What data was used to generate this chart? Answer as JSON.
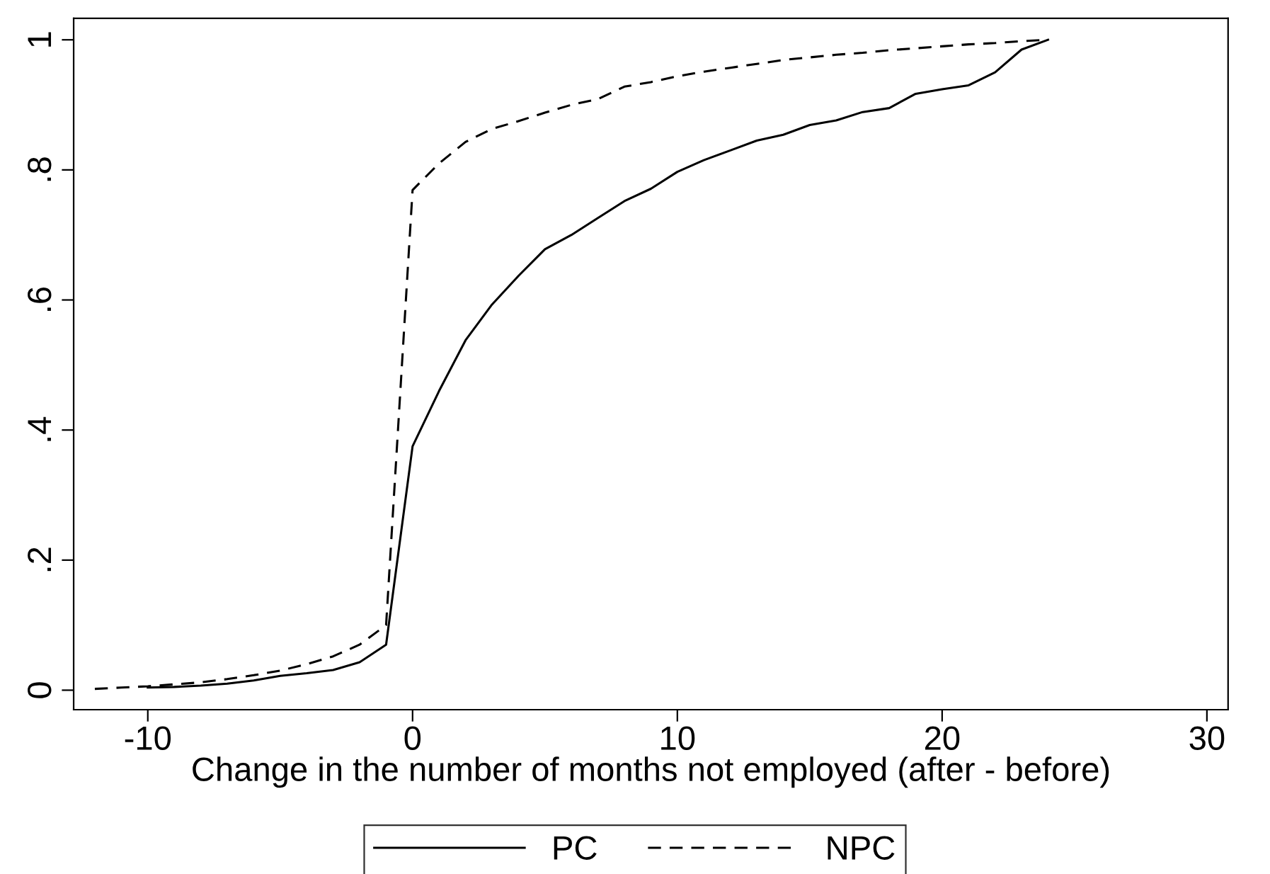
{
  "chart_data": {
    "type": "line",
    "xlabel": "Change in the number of months not employed (after - before)",
    "xlim": [
      -12.8,
      30.8
    ],
    "xticks": [
      -10,
      0,
      10,
      20,
      30
    ],
    "ylim": [
      -0.03,
      1.033
    ],
    "yticks": [
      {
        "value": 0,
        "label": "0"
      },
      {
        "value": 0.2,
        "label": ".2"
      },
      {
        "value": 0.4,
        "label": ".4"
      },
      {
        "value": 0.6,
        "label": ".6"
      },
      {
        "value": 0.8,
        "label": ".8"
      },
      {
        "value": 1,
        "label": "1"
      }
    ],
    "grid": false,
    "legend": "bottom",
    "marker": "none",
    "series": [
      {
        "name": "PC",
        "color": "#000000",
        "line_style": "solid",
        "x": [
          -10,
          -9,
          -8,
          -7,
          -6,
          -5,
          -4,
          -3,
          -2,
          -1,
          0,
          1,
          2,
          3,
          4,
          5,
          6,
          7,
          8,
          9,
          10,
          11,
          12,
          13,
          14,
          15,
          16,
          17,
          18,
          19,
          20,
          21,
          22,
          23,
          24
        ],
        "values": [
          0.004,
          0.005,
          0.007,
          0.01,
          0.015,
          0.022,
          0.026,
          0.031,
          0.043,
          0.07,
          0.375,
          0.46,
          0.538,
          0.593,
          0.637,
          0.678,
          0.7,
          0.726,
          0.752,
          0.771,
          0.797,
          0.815,
          0.83,
          0.845,
          0.854,
          0.869,
          0.876,
          0.889,
          0.895,
          0.917,
          0.924,
          0.93,
          0.95,
          0.985,
          1.0
        ]
      },
      {
        "name": "NPC",
        "color": "#000000",
        "line_style": "dashed",
        "x": [
          -12,
          -11,
          -10,
          -9,
          -8,
          -7,
          -6,
          -5,
          -4,
          -3,
          -2,
          -1,
          0,
          1,
          2,
          3,
          4,
          5,
          6,
          7,
          8,
          9,
          10,
          11,
          12,
          13,
          14,
          15,
          16,
          17,
          18,
          19,
          20,
          21,
          22,
          23,
          24
        ],
        "values": [
          0.002,
          0.004,
          0.006,
          0.009,
          0.012,
          0.017,
          0.023,
          0.03,
          0.04,
          0.052,
          0.07,
          0.1,
          0.769,
          0.81,
          0.843,
          0.863,
          0.875,
          0.888,
          0.9,
          0.909,
          0.928,
          0.935,
          0.944,
          0.951,
          0.957,
          0.963,
          0.969,
          0.973,
          0.977,
          0.98,
          0.984,
          0.987,
          0.99,
          0.993,
          0.995,
          0.998,
          1.0
        ]
      }
    ]
  }
}
